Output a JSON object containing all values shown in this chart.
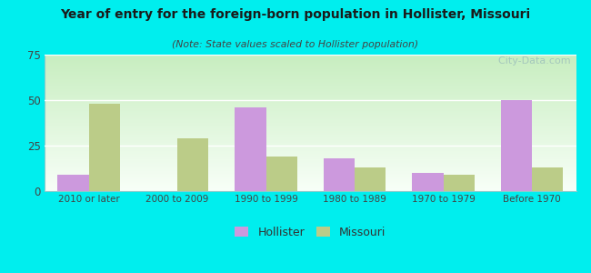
{
  "title": "Year of entry for the foreign-born population in Hollister, Missouri",
  "subtitle": "(Note: State values scaled to Hollister population)",
  "categories": [
    "2010 or later",
    "2000 to 2009",
    "1990 to 1999",
    "1980 to 1989",
    "1970 to 1979",
    "Before 1970"
  ],
  "hollister": [
    9,
    0,
    46,
    18,
    10,
    50
  ],
  "missouri": [
    48,
    29,
    19,
    13,
    9,
    13
  ],
  "hollister_color": "#cc99dd",
  "missouri_color": "#bbcc88",
  "background_color": "#00eeee",
  "gradient_top": "#c8eec0",
  "gradient_bottom": "#f8fff8",
  "ylim": [
    0,
    75
  ],
  "yticks": [
    0,
    25,
    50,
    75
  ],
  "bar_width": 0.35,
  "legend_labels": [
    "Hollister",
    "Missouri"
  ],
  "watermark": "  City-Data.com"
}
